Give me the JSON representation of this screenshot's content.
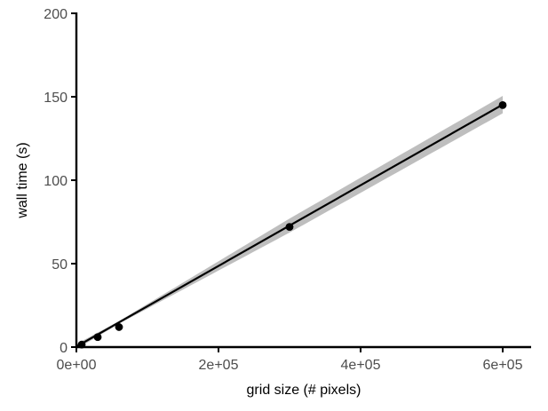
{
  "chart_data": {
    "type": "scatter",
    "title": "",
    "xlabel": "grid size (# pixels)",
    "ylabel": "wall time (s)",
    "xlim": [
      0,
      640000
    ],
    "ylim": [
      0,
      200
    ],
    "x_ticks": [
      0,
      200000,
      400000,
      600000
    ],
    "x_tick_labels": [
      "0e+00",
      "2e+05",
      "4e+05",
      "6e+05"
    ],
    "y_ticks": [
      0,
      50,
      100,
      150,
      200
    ],
    "y_tick_labels": [
      "0",
      "50",
      "100",
      "150",
      "200"
    ],
    "grid": false,
    "legend": "none",
    "series": [
      {
        "x": [
          7500,
          30000,
          60000,
          300000,
          600000
        ],
        "y": [
          1.5,
          6,
          12,
          72,
          145
        ]
      }
    ],
    "fit": {
      "type": "linear",
      "x_range": [
        0,
        600000
      ],
      "y_range": [
        0.3,
        145.3
      ],
      "ci_halfwidth_at_x": [
        [
          0,
          1.5
        ],
        [
          60000,
          0.8
        ],
        [
          300000,
          4.2
        ],
        [
          600000,
          5.2
        ]
      ]
    },
    "colors": {
      "points": "#000000",
      "line": "#000000",
      "ribbon": "#bebebe",
      "axis": "#000000",
      "tick_text": "#4d4d4d"
    }
  }
}
